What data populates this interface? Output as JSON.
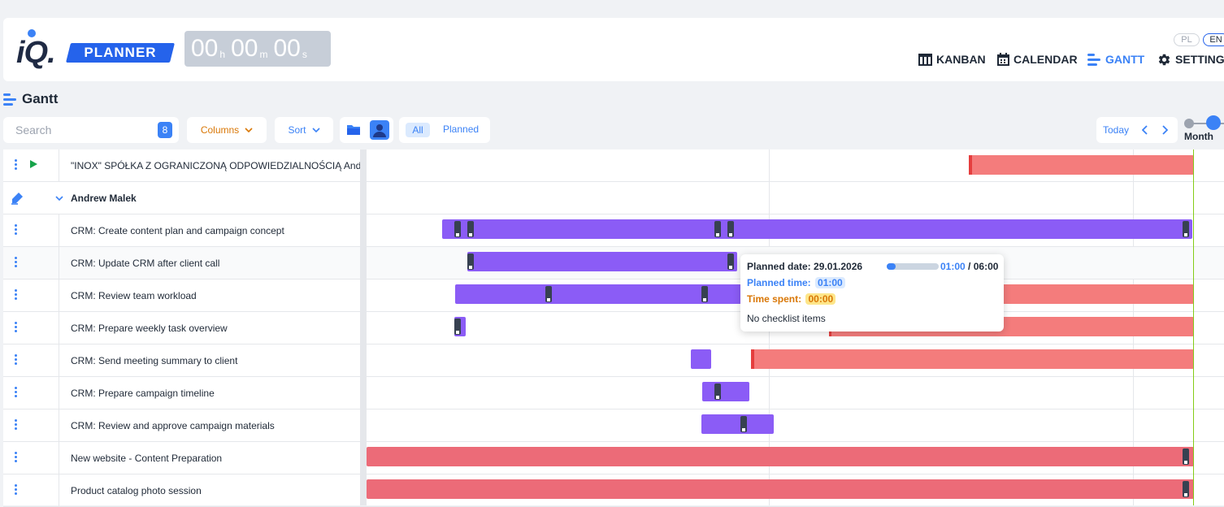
{
  "app": {
    "logo_iq": "iQ.",
    "logo_planner": "PLANNER"
  },
  "timer": {
    "hours": "00",
    "hours_unit": "h",
    "minutes": "00",
    "minutes_unit": "m",
    "seconds": "00",
    "seconds_unit": "s"
  },
  "lang": {
    "pl": "PL",
    "en": "EN",
    "active": "EN"
  },
  "nav": {
    "kanban": "KANBAN",
    "calendar": "CALENDAR",
    "gantt": "GANTT",
    "settings": "SETTINGS",
    "active": "GANTT"
  },
  "page": {
    "title": "Gantt"
  },
  "toolbar": {
    "search_placeholder": "Search",
    "search_count": "8",
    "columns_label": "Columns",
    "sort_label": "Sort",
    "filter_all": "All",
    "filter_planned": "Planned",
    "today_label": "Today",
    "zoom_label": "Month"
  },
  "colors": {
    "accent": "#3b82f6",
    "task_bar": "#8b5cf6",
    "overdue_bar": "#f47c7c",
    "today_line": "#84cc16"
  },
  "rows": [
    {
      "name": "\"INOX\" SPÓŁKA Z OGRANICZONĄ ODPOWIEDZIALNOŚCIĄ Andrzej",
      "type": "project"
    },
    {
      "name": "Andrew Malek",
      "type": "group"
    },
    {
      "name": "CRM: Create content plan and campaign concept",
      "type": "task"
    },
    {
      "name": "CRM: Update CRM after client call",
      "type": "task"
    },
    {
      "name": "CRM: Review team workload",
      "type": "task"
    },
    {
      "name": "CRM: Prepare weekly task overview",
      "type": "task"
    },
    {
      "name": "CRM: Send meeting summary to client",
      "type": "task"
    },
    {
      "name": "CRM: Prepare campaign timeline",
      "type": "task"
    },
    {
      "name": "CRM: Review and approve campaign materials",
      "type": "task"
    },
    {
      "name": "New website - Content Preparation",
      "type": "task"
    },
    {
      "name": "Product catalog photo session",
      "type": "task"
    }
  ],
  "tooltip": {
    "planned_date_label": "Planned date: 29.01.2026",
    "progress_fraction": 0.17,
    "spent_ratio_a": "01:00",
    "spent_ratio_sep": " / ",
    "spent_ratio_b": "06:00",
    "planned_time_label": "Planned time:",
    "planned_time_value": "01:00",
    "time_spent_label": "Time spent:",
    "time_spent_value": "00:00",
    "checklist": "No checklist items"
  }
}
